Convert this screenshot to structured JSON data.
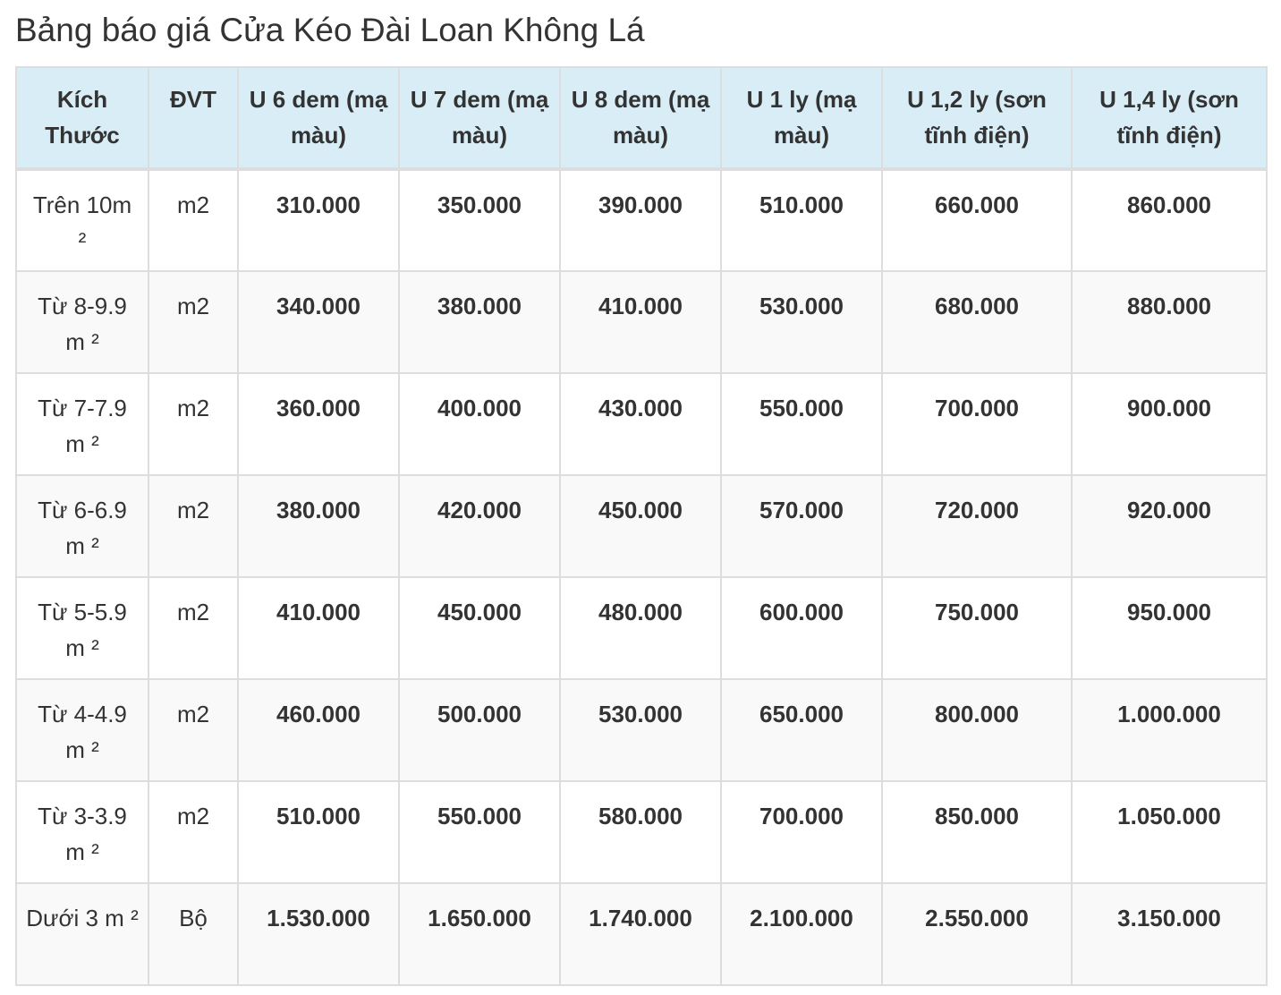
{
  "title": "Bảng báo giá Cửa Kéo Đài Loan Không Lá",
  "table": {
    "headers": [
      "Kích Thước",
      "ĐVT",
      "U 6 dem (mạ màu)",
      "U 7 dem (mạ màu)",
      "U 8 dem (mạ màu)",
      "U 1 ly (mạ màu)",
      "U 1,2 ly (sơn tĩnh điện)",
      "U 1,4 ly (sơn tĩnh điện)"
    ],
    "rows": [
      {
        "size": "Trên 10m ²",
        "unit": "m2",
        "prices": [
          "310.000",
          "350.000",
          "390.000",
          "510.000",
          "660.000",
          "860.000"
        ]
      },
      {
        "size": "Từ 8-9.9 m ²",
        "unit": "m2",
        "prices": [
          "340.000",
          "380.000",
          "410.000",
          "530.000",
          "680.000",
          "880.000"
        ]
      },
      {
        "size": "Từ 7-7.9 m ²",
        "unit": "m2",
        "prices": [
          "360.000",
          "400.000",
          "430.000",
          "550.000",
          "700.000",
          "900.000"
        ]
      },
      {
        "size": "Từ 6-6.9 m ²",
        "unit": "m2",
        "prices": [
          "380.000",
          "420.000",
          "450.000",
          "570.000",
          "720.000",
          "920.000"
        ]
      },
      {
        "size": "Từ 5-5.9 m ²",
        "unit": "m2",
        "prices": [
          "410.000",
          "450.000",
          "480.000",
          "600.000",
          "750.000",
          "950.000"
        ]
      },
      {
        "size": "Từ 4-4.9 m ²",
        "unit": "m2",
        "prices": [
          "460.000",
          "500.000",
          "530.000",
          "650.000",
          "800.000",
          "1.000.000"
        ]
      },
      {
        "size": "Từ 3-3.9 m ²",
        "unit": "m2",
        "prices": [
          "510.000",
          "550.000",
          "580.000",
          "700.000",
          "850.000",
          "1.050.000"
        ]
      },
      {
        "size": "Dưới 3 m ²",
        "unit": "Bộ",
        "prices": [
          "1.530.000",
          "1.650.000",
          "1.740.000",
          "2.100.000",
          "2.550.000",
          "3.150.000"
        ]
      }
    ]
  },
  "colors": {
    "header_bg": "#d9edf7",
    "border": "#dddddd",
    "stripe": "#f9f9f9",
    "text": "#333333"
  }
}
